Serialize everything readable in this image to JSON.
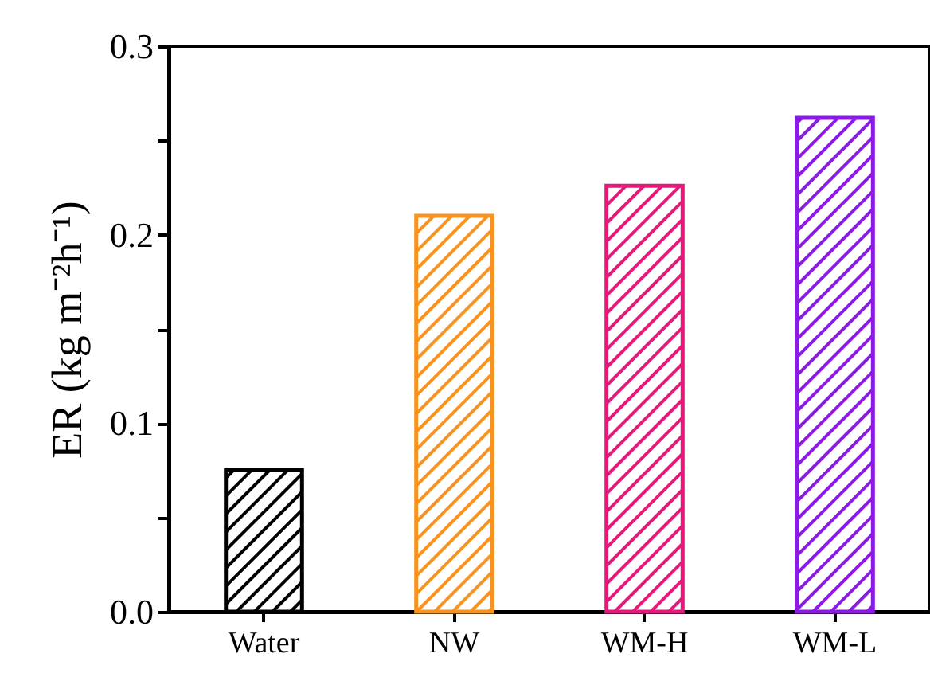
{
  "chart_data": {
    "type": "bar",
    "ylabel": "ER (kg m⁻²h⁻¹)",
    "categories": [
      "Water",
      "NW",
      "WM-H",
      "WM-L"
    ],
    "values": [
      0.075,
      0.21,
      0.226,
      0.262
    ],
    "colors": [
      "#000000",
      "#f7931e",
      "#e6197a",
      "#8b1ae6"
    ],
    "ylim": [
      0,
      0.3
    ],
    "yticks": [
      {
        "value": 0,
        "label": "0.0"
      },
      {
        "value": 0.05,
        "label": null
      },
      {
        "value": 0.1,
        "label": "0.1"
      },
      {
        "value": 0.15,
        "label": null
      },
      {
        "value": 0.2,
        "label": "0.2"
      },
      {
        "value": 0.25,
        "label": null
      },
      {
        "value": 0.3,
        "label": "0.3"
      }
    ],
    "grid": false
  }
}
